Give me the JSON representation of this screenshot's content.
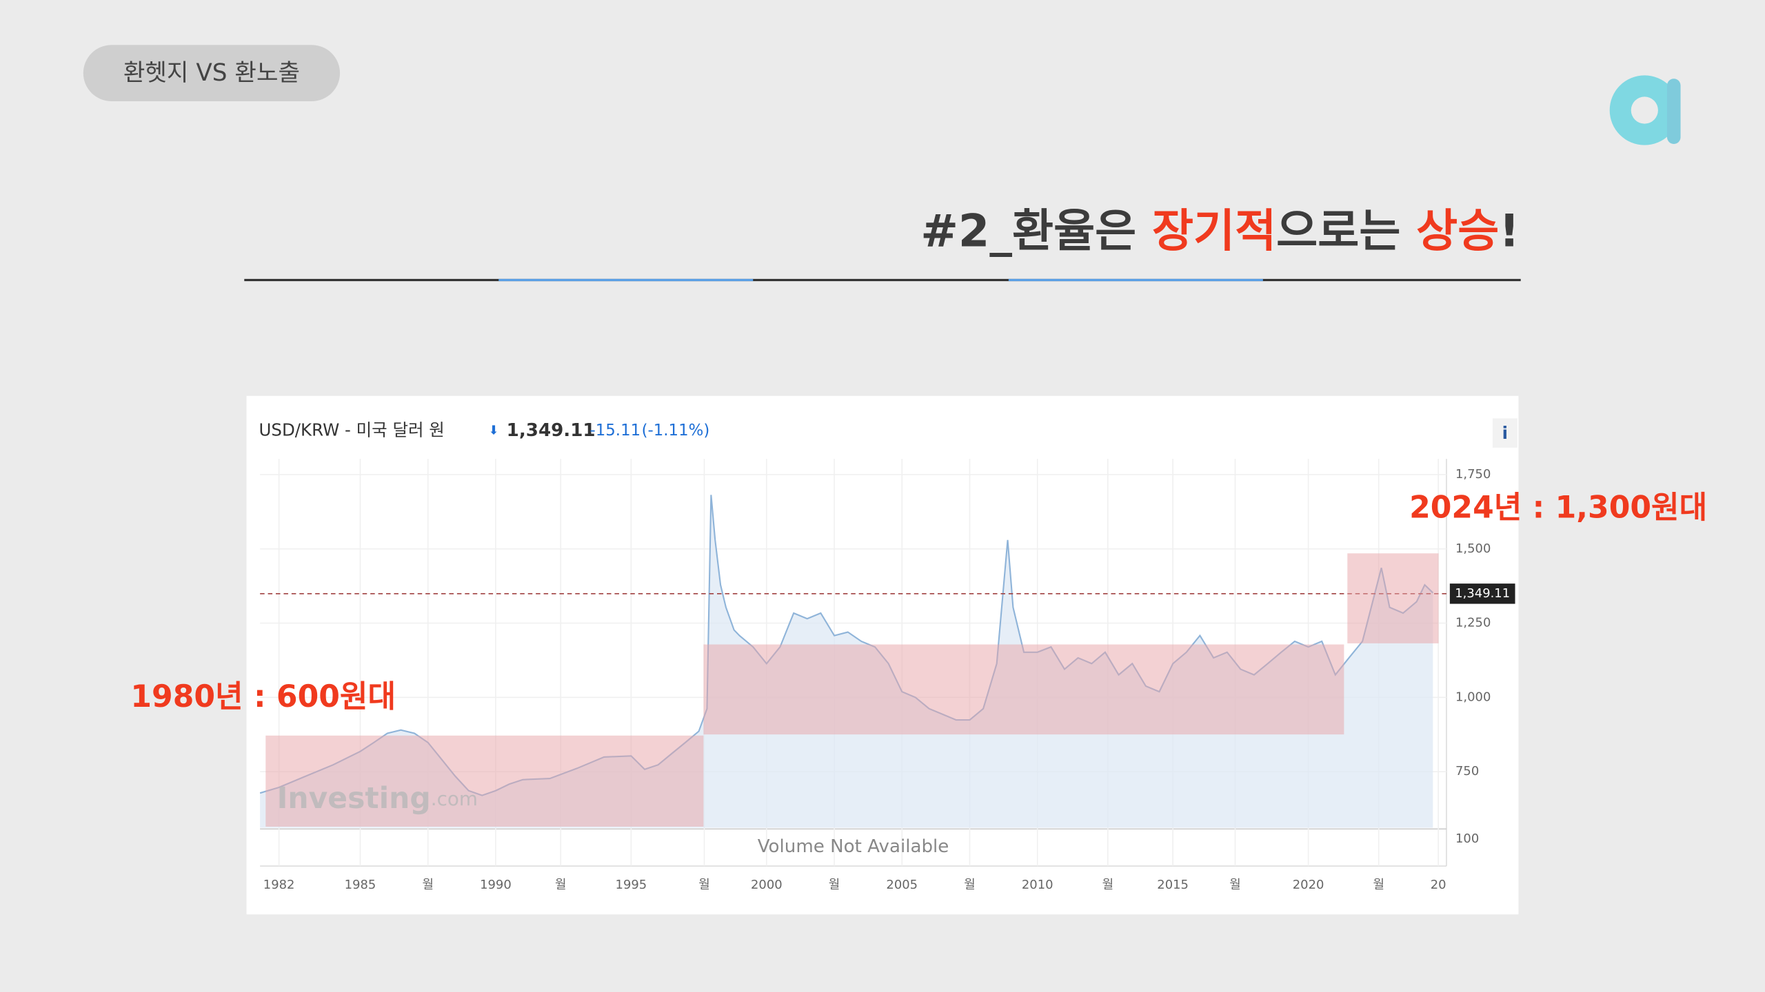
{
  "tag": "환헷지 VS 환노출",
  "title": {
    "prefix": "#2_환율은 ",
    "highlight1": "장기적",
    "middle": "으로는 ",
    "highlight2": "상승",
    "suffix": "!"
  },
  "annotations": [
    "1980년 : 600원대",
    "2024년 : 1,300원대"
  ],
  "chart_data": {
    "type": "area",
    "symbol": "USD/KRW - 미국 달러 원",
    "last_price": {
      "value": 1349.11,
      "label": "1,349.11"
    },
    "change": -15.11,
    "change_pct": "(-1.11%)",
    "info": "i",
    "watermark": {
      "brand": "Investing",
      "suffix": ".com"
    },
    "volume_pane": {
      "label": "Volume Not Available",
      "tick": "100"
    },
    "color": "#8fb4d9",
    "x": [
      1981.3,
      1982,
      1983,
      1984,
      1985,
      1985.5,
      1986,
      1986.5,
      1987,
      1987.5,
      1988,
      1988.5,
      1989,
      1989.5,
      1990,
      1990.5,
      1991,
      1992,
      1993,
      1994,
      1995,
      1995.5,
      1996,
      1996.5,
      1997,
      1997.5,
      1997.8,
      1997.95,
      1998.1,
      1998.3,
      1998.5,
      1998.8,
      1999,
      1999.5,
      2000,
      2000.5,
      2001,
      2001.5,
      2002,
      2002.5,
      2003,
      2003.5,
      2004,
      2004.5,
      2005,
      2005.5,
      2006,
      2006.5,
      2007,
      2007.5,
      2008,
      2008.5,
      2008.9,
      2009.1,
      2009.5,
      2010,
      2010.5,
      2011,
      2011.5,
      2012,
      2012.5,
      2013,
      2013.5,
      2014,
      2014.5,
      2015,
      2015.5,
      2016,
      2016.5,
      2017,
      2017.5,
      2018,
      2018.5,
      2019,
      2019.5,
      2020,
      2020.5,
      2021,
      2021.5,
      2022,
      2022.7,
      2023,
      2023.5,
      2024,
      2024.3,
      2024.6
    ],
    "values": [
      678,
      697,
      735,
      773,
      818,
      848,
      879,
      890,
      879,
      848,
      792,
      735,
      686,
      670,
      686,
      708,
      723,
      727,
      761,
      799,
      803,
      758,
      773,
      811,
      848,
      886,
      962,
      1682,
      1530,
      1379,
      1303,
      1227,
      1208,
      1170,
      1114,
      1170,
      1284,
      1265,
      1284,
      1208,
      1220,
      1189,
      1170,
      1114,
      1019,
      1000,
      962,
      943,
      924,
      924,
      962,
      1114,
      1530,
      1303,
      1152,
      1152,
      1170,
      1095,
      1133,
      1114,
      1152,
      1076,
      1114,
      1038,
      1019,
      1114,
      1152,
      1208,
      1133,
      1152,
      1095,
      1076,
      1114,
      1152,
      1189,
      1170,
      1189,
      1076,
      1133,
      1189,
      1436,
      1303,
      1284,
      1322,
      1379,
      1352
    ],
    "xlim": [
      1981.3,
      2025.1
    ],
    "ylim": [
      561,
      1803
    ],
    "xticks": [
      1982,
      1985,
      {
        "value": 1987.5,
        "label": "월"
      },
      1990,
      {
        "value": 1992.4,
        "label": "월"
      },
      1995,
      {
        "value": 1997.7,
        "label": "월"
      },
      2000,
      {
        "value": 2002.5,
        "label": "월"
      },
      2005,
      {
        "value": 2007.5,
        "label": "월"
      },
      2010,
      {
        "value": 2012.6,
        "label": "월"
      },
      2015,
      {
        "value": 2017.3,
        "label": "월"
      },
      2020,
      {
        "value": 2022.6,
        "label": "월"
      },
      {
        "value": 2024.8,
        "label": "20"
      }
    ],
    "yticks": [
      750,
      {
        "value": 1000,
        "label": "1,000"
      },
      {
        "value": 1250,
        "label": "1,250"
      },
      {
        "value": 1500,
        "label": "1,500"
      },
      {
        "value": 1750,
        "label": "1,750"
      }
    ],
    "grid": true
  }
}
